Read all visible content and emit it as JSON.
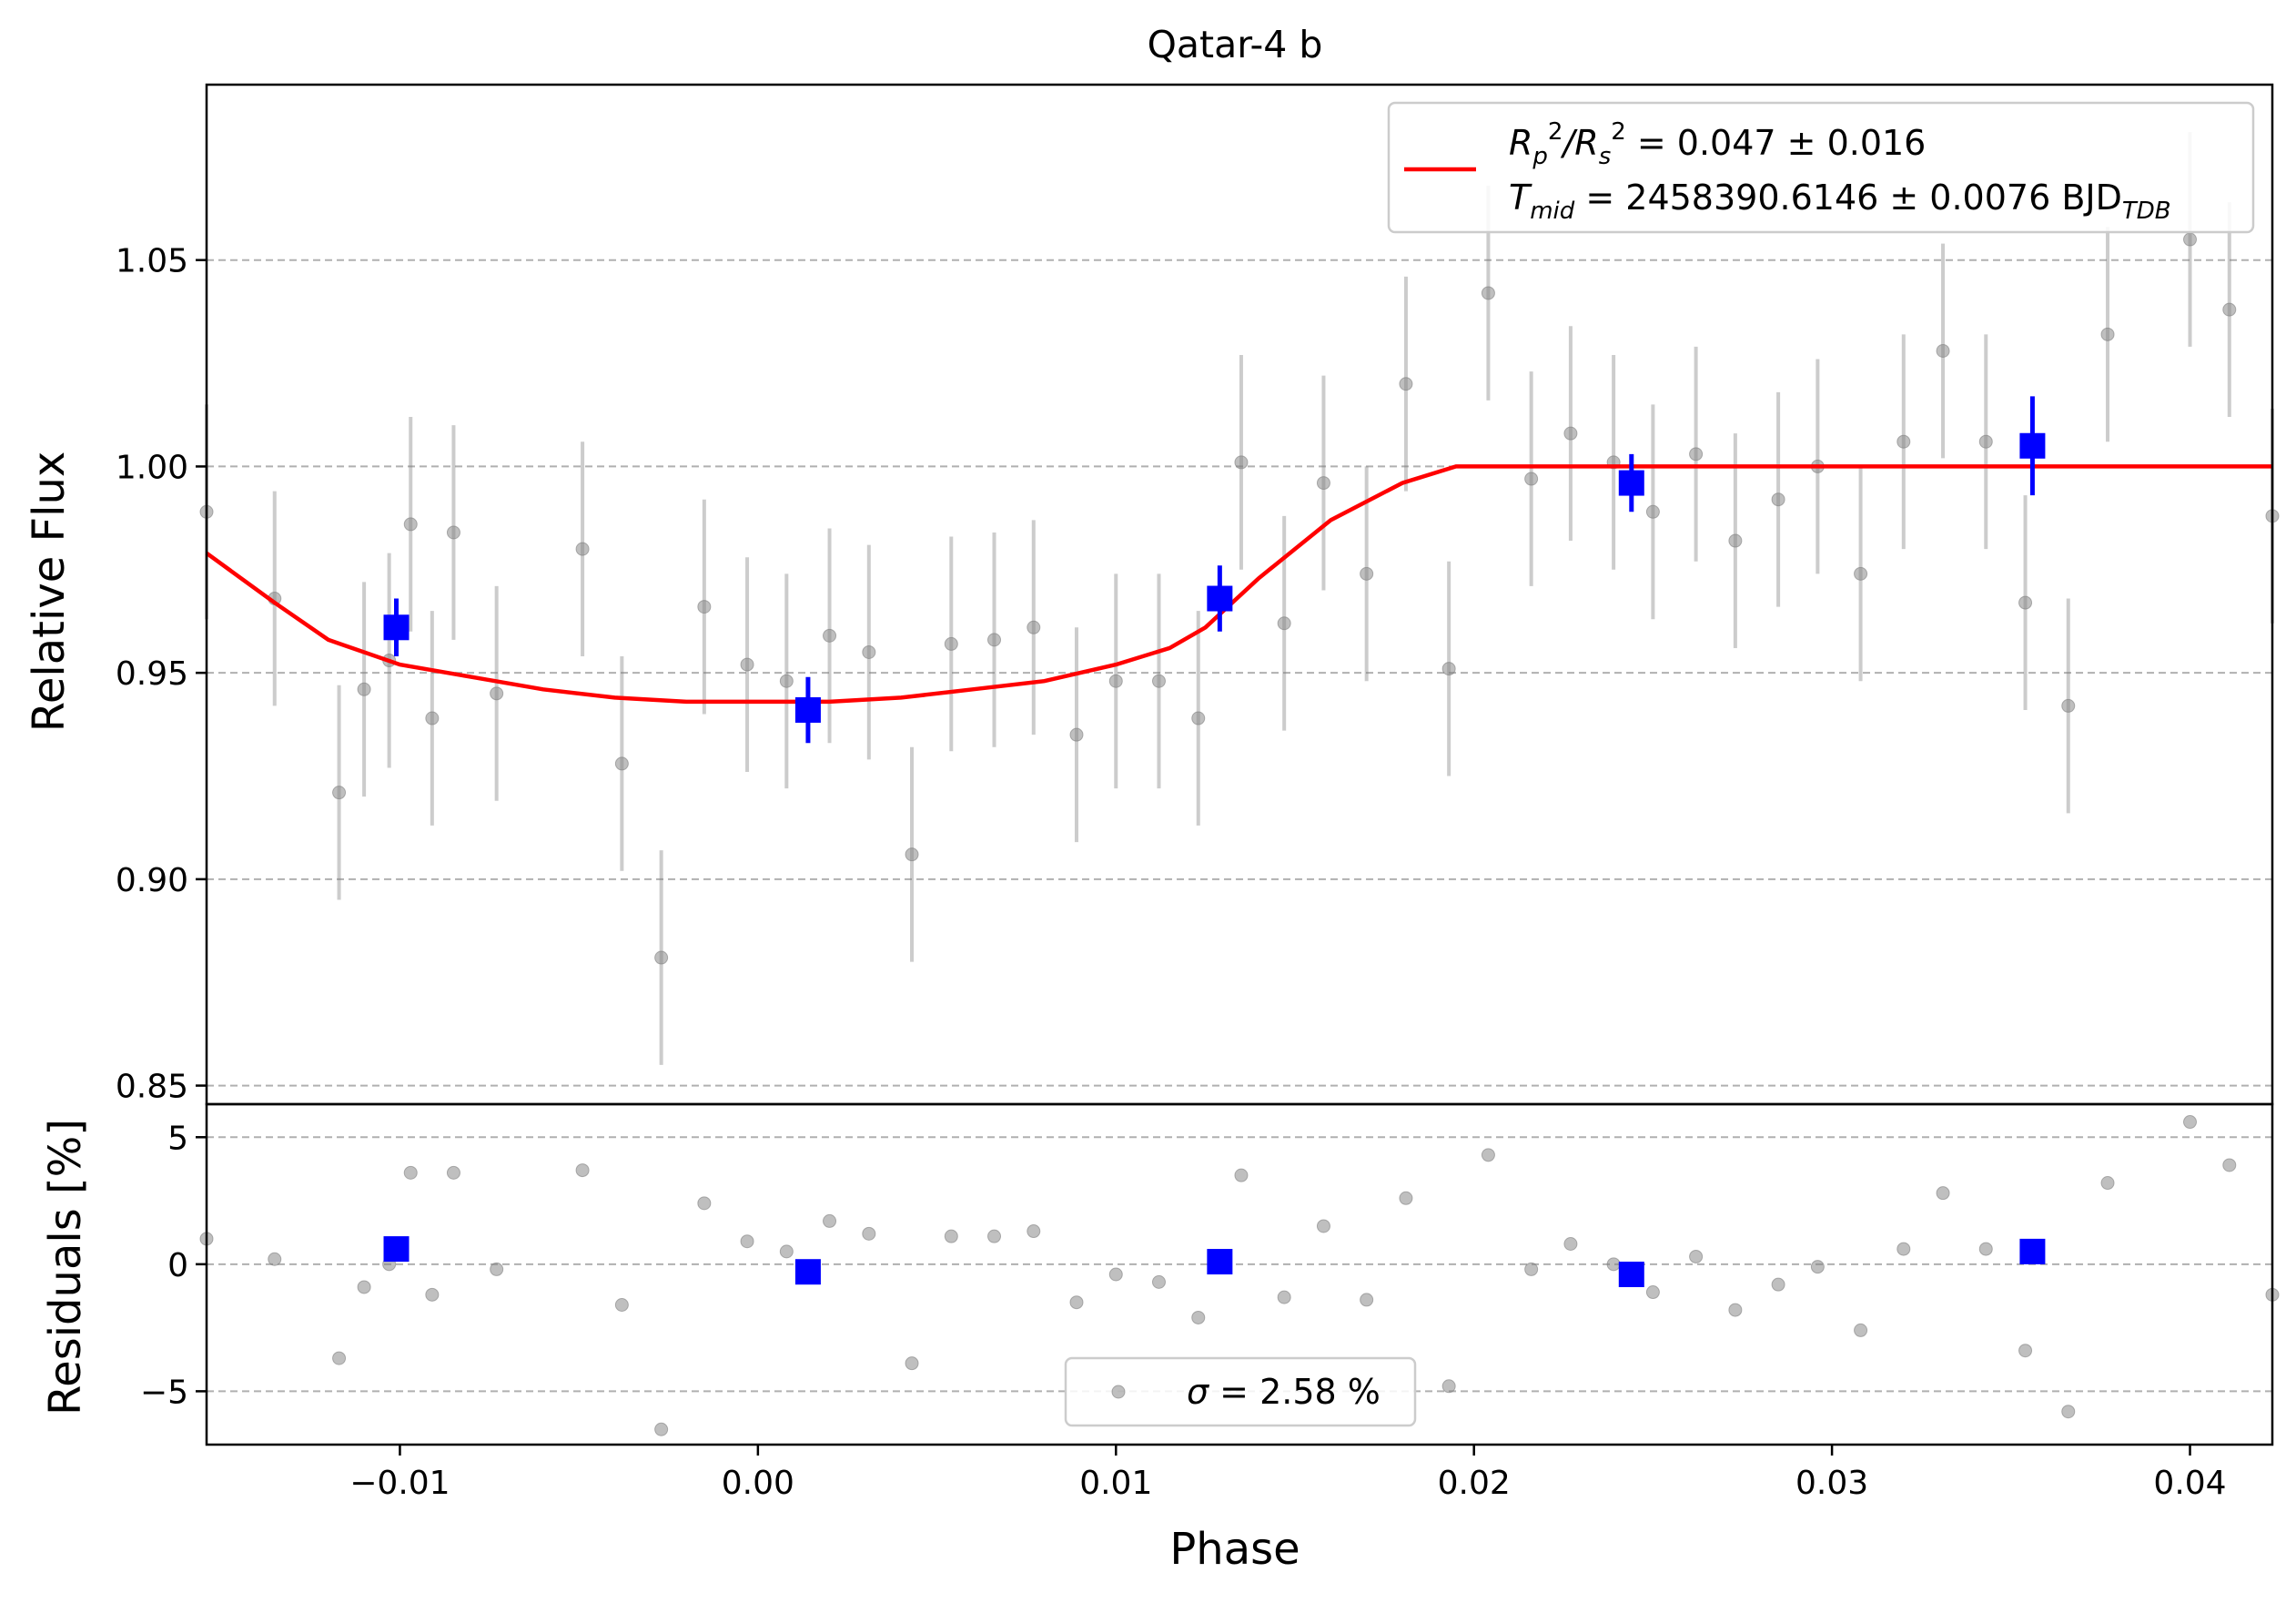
{
  "chart_data": [
    {
      "panel": "main",
      "type": "scatter",
      "title": "Qatar-4 b",
      "xlabel": "",
      "ylabel": "Relative Flux",
      "xlim": [
        -0.0154,
        0.0423
      ],
      "ylim": [
        0.8455,
        1.0925
      ],
      "yticks": [
        0.85,
        0.9,
        0.95,
        1.0,
        1.05
      ],
      "ytick_labels": [
        "0.85",
        "0.90",
        "0.95",
        "1.00",
        "1.05"
      ],
      "grid": "horizontal-dashed",
      "legend": {
        "placement": "top-right",
        "line1": [
          "R",
          "p",
          "2",
          "/R",
          "s",
          "2",
          " = 0.047 ± 0.016"
        ],
        "line2": [
          "T",
          "mid",
          " = 2458390.6146 ± 0.0076 BJD",
          "TDB"
        ]
      },
      "series": [
        {
          "kind": "data-points-with-errorbars",
          "color": "#808080",
          "x": [
            -0.0154,
            -0.0135,
            -0.0117,
            -0.011,
            -0.0103,
            -0.0097,
            -0.0091,
            -0.0085,
            -0.0073,
            -0.0049,
            -0.0038,
            -0.0027,
            -0.0015,
            -0.0003,
            0.0008,
            0.002,
            0.0031,
            0.0043,
            0.0054,
            0.0066,
            0.0077,
            0.0089,
            0.01,
            0.0112,
            0.0123,
            0.0135,
            0.0147,
            0.0158,
            0.017,
            0.0181,
            0.0193,
            0.0204,
            0.0216,
            0.0227,
            0.0239,
            0.025,
            0.0262,
            0.0273,
            0.0285,
            0.0296,
            0.0308,
            0.032,
            0.0331,
            0.0343,
            0.0354,
            0.0366,
            0.0377,
            0.04,
            0.0411,
            0.0423
          ],
          "y": [
            0.989,
            0.968,
            0.921,
            0.946,
            0.953,
            0.986,
            0.939,
            0.984,
            0.945,
            0.98,
            0.928,
            0.881,
            0.966,
            0.952,
            0.948,
            0.959,
            0.955,
            0.906,
            0.957,
            0.958,
            0.961,
            0.935,
            0.948,
            0.948,
            0.939,
            1.001,
            0.962,
            0.996,
            0.974,
            1.02,
            0.951,
            1.042,
            0.997,
            1.008,
            1.001,
            0.989,
            1.003,
            0.982,
            0.992,
            1.0,
            0.974,
            1.006,
            1.028,
            1.006,
            0.967,
            0.942,
            1.032,
            1.055,
            1.038,
            0.988
          ],
          "yerr": 0.026
        },
        {
          "kind": "binned-points",
          "color": "#0000ff",
          "x": [
            -0.0101,
            0.0014,
            0.0129,
            0.0244,
            0.0356
          ],
          "y": [
            0.961,
            0.941,
            0.968,
            0.996,
            1.005
          ],
          "yerr": [
            0.007,
            0.008,
            0.008,
            0.007,
            0.012
          ]
        },
        {
          "kind": "transit-model",
          "color": "#ff0000",
          "x": [
            -0.0154,
            -0.0135,
            -0.012,
            -0.01,
            -0.008,
            -0.006,
            -0.004,
            -0.002,
            0.0,
            0.002,
            0.004,
            0.006,
            0.008,
            0.01,
            0.0115,
            0.0125,
            0.014,
            0.016,
            0.018,
            0.0195,
            0.0202,
            0.0423
          ],
          "y": [
            0.979,
            0.967,
            0.958,
            0.952,
            0.949,
            0.946,
            0.944,
            0.943,
            0.943,
            0.943,
            0.944,
            0.946,
            0.948,
            0.952,
            0.956,
            0.961,
            0.973,
            0.987,
            0.996,
            1.0,
            1.0,
            1.0
          ]
        }
      ]
    },
    {
      "panel": "residuals",
      "type": "scatter",
      "xlabel": "Phase",
      "ylabel": "Residuals [%]",
      "xlim": [
        -0.0154,
        0.0423
      ],
      "ylim": [
        -7.1,
        6.3
      ],
      "yticks": [
        -5,
        0,
        5
      ],
      "ytick_labels": [
        "−5",
        "0",
        "5"
      ],
      "xticks": [
        -0.01,
        0.0,
        0.01,
        0.02,
        0.03,
        0.04
      ],
      "xtick_labels": [
        "−0.01",
        "0.00",
        "0.01",
        "0.02",
        "0.03",
        "0.04"
      ],
      "grid": "horizontal-dashed",
      "legend": {
        "placement": "bottom-center",
        "label": [
          "σ",
          " = 2.58 %"
        ]
      },
      "series": [
        {
          "kind": "residual-points",
          "color": "#808080",
          "x": [
            -0.0154,
            -0.0135,
            -0.0117,
            -0.011,
            -0.0103,
            -0.0097,
            -0.0091,
            -0.0085,
            -0.0073,
            -0.0049,
            -0.0038,
            -0.0027,
            -0.0015,
            -0.0003,
            0.0008,
            0.002,
            0.0031,
            0.0043,
            0.0054,
            0.0066,
            0.0077,
            0.0089,
            0.01,
            0.0112,
            0.0123,
            0.0135,
            0.0147,
            0.0158,
            0.017,
            0.0181,
            0.0193,
            0.0204,
            0.0216,
            0.0227,
            0.0239,
            0.025,
            0.0262,
            0.0273,
            0.0285,
            0.0296,
            0.0308,
            0.032,
            0.0331,
            0.0343,
            0.0354,
            0.0366,
            0.0377,
            0.04,
            0.0411,
            0.0423
          ],
          "y": [
            1.0,
            0.2,
            -3.7,
            -0.9,
            0.0,
            3.6,
            -1.2,
            3.6,
            -0.2,
            3.7,
            -1.6,
            -6.5,
            2.4,
            0.9,
            0.5,
            1.7,
            1.2,
            -3.9,
            1.1,
            1.1,
            1.3,
            -1.5,
            -0.4,
            -0.7,
            -2.1,
            3.5,
            -1.3,
            1.5,
            -1.4,
            2.6,
            -4.8,
            4.3,
            -0.2,
            0.8,
            0.0,
            -1.1,
            0.3,
            -1.8,
            -0.8,
            -0.1,
            -2.6,
            0.6,
            2.8,
            0.6,
            -3.4,
            -5.8,
            3.2,
            5.6,
            3.9,
            -1.2
          ]
        },
        {
          "kind": "binned-residuals",
          "color": "#0000ff",
          "x": [
            -0.0101,
            0.0014,
            0.0129,
            0.0244,
            0.0356
          ],
          "y": [
            0.6,
            -0.3,
            0.1,
            -0.4,
            0.5
          ]
        }
      ]
    }
  ]
}
